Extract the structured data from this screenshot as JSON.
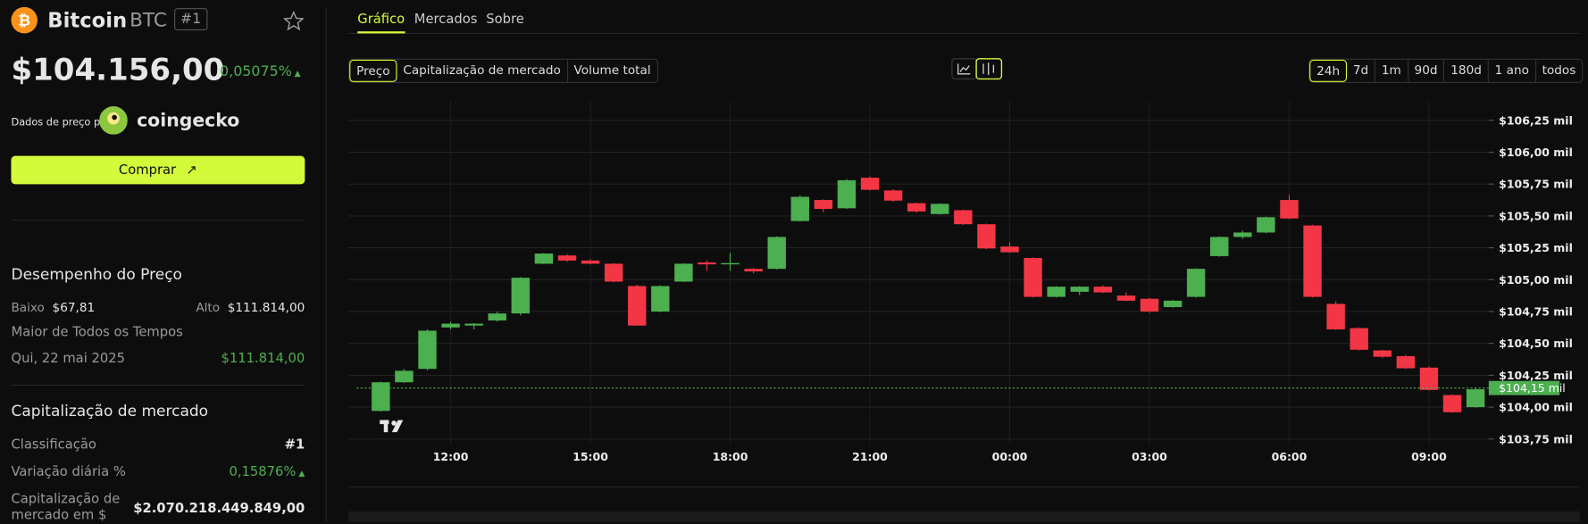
{
  "header": {
    "name": "Bitcoin",
    "symbol": "BTC",
    "rank": "#1"
  },
  "price": {
    "value": "$104.156,00",
    "change": "0,05075%"
  },
  "source": {
    "label": "Dados de preço por",
    "brand": "coingecko"
  },
  "buy_button": "Comprar",
  "performance": {
    "title": "Desempenho do Preço",
    "low_label": "Baixo",
    "low_value": "$67,81",
    "high_label": "Alto",
    "high_value": "$111.814,00",
    "ath_label": "Maior de Todos os Tempos",
    "ath_date": "Qui, 22 mai 2025",
    "ath_value": "$111.814,00"
  },
  "market_cap": {
    "title": "Capitalização de mercado",
    "rows": [
      [
        "Classificação",
        "#1"
      ],
      [
        "Variação diária %",
        "0,15876%"
      ],
      [
        "Capitalização de mercado em $",
        "$2.070.218.449.849,00"
      ]
    ]
  },
  "tabs": [
    "Gráfico",
    "Mercados",
    "Sobre"
  ],
  "metrics": [
    "Preço",
    "Capitalização de mercado",
    "Volume total"
  ],
  "ranges": [
    "24h",
    "7d",
    "1m",
    "90d",
    "180d",
    "1 ano",
    "todos"
  ],
  "chart_data": {
    "type": "candlestick",
    "categories": [
      null,
      null,
      null,
      "12:00",
      null,
      null,
      null,
      null,
      null,
      "15:00",
      null,
      null,
      null,
      null,
      null,
      "18:00",
      null,
      null,
      null,
      null,
      null,
      "21:00",
      null,
      null,
      null,
      null,
      null,
      "00:00",
      null,
      null,
      null,
      null,
      null,
      "03:00",
      null,
      null,
      null,
      null,
      null,
      "06:00",
      null,
      null,
      null,
      null,
      null,
      "09:00",
      null,
      null
    ],
    "open": [
      103970,
      104195,
      104300,
      104625,
      104640,
      104680,
      104735,
      105125,
      105190,
      105150,
      105125,
      104950,
      104750,
      104985,
      105135,
      105120,
      105085,
      105085,
      105460,
      105625,
      105560,
      105800,
      105700,
      105600,
      105515,
      105545,
      105435,
      105260,
      105170,
      104865,
      104905,
      104945,
      104875,
      104850,
      104785,
      104865,
      105185,
      105335,
      105370,
      105625,
      105425,
      104810,
      104620,
      104445,
      104400,
      104310,
      104095,
      104000
    ],
    "high": [
      104200,
      104300,
      104610,
      104670,
      104660,
      104750,
      105020,
      105210,
      105200,
      105160,
      105130,
      104960,
      104955,
      105130,
      105150,
      105210,
      105090,
      105340,
      105660,
      105630,
      105790,
      105810,
      105710,
      105605,
      105600,
      105550,
      105440,
      105290,
      105175,
      104950,
      104950,
      104955,
      104900,
      104860,
      104840,
      105090,
      105340,
      105385,
      105495,
      105665,
      105430,
      104830,
      104625,
      104450,
      104410,
      104320,
      104100,
      104150
    ],
    "low": [
      103965,
      104190,
      104290,
      104610,
      104610,
      104670,
      104720,
      105120,
      105140,
      105120,
      104980,
      104640,
      104745,
      104980,
      105070,
      105070,
      105050,
      105080,
      105455,
      105530,
      105555,
      105700,
      105610,
      105525,
      105510,
      105430,
      105240,
      105210,
      104860,
      104860,
      104880,
      104895,
      104830,
      104740,
      104780,
      104860,
      105180,
      105320,
      105365,
      105475,
      104860,
      104605,
      104445,
      104385,
      104300,
      104130,
      103955,
      103995
    ],
    "close": [
      104195,
      104285,
      104600,
      104655,
      104655,
      104735,
      105015,
      105205,
      105150,
      105125,
      104985,
      104640,
      104950,
      105125,
      105120,
      105130,
      105065,
      105335,
      105650,
      105555,
      105780,
      105705,
      105620,
      105535,
      105595,
      105435,
      105245,
      105215,
      104865,
      104945,
      104945,
      104900,
      104835,
      104750,
      104835,
      105085,
      105335,
      105370,
      105490,
      105480,
      104865,
      104610,
      104450,
      104395,
      104305,
      104135,
      103960,
      104140
    ],
    "up_color": "#4caf50",
    "down_color": "#f23645",
    "ylim": [
      103700,
      106400
    ],
    "yticks": [
      {
        "value": 103750,
        "label": "$103,75 mil"
      },
      {
        "value": 104000,
        "label": "$104,00 mil"
      },
      {
        "value": 104250,
        "label": "$104,25 mil"
      },
      {
        "value": 104500,
        "label": "$104,50 mil"
      },
      {
        "value": 104750,
        "label": "$104,75 mil"
      },
      {
        "value": 105000,
        "label": "$105,00 mil"
      },
      {
        "value": 105250,
        "label": "$105,25 mil"
      },
      {
        "value": 105500,
        "label": "$105,50 mil"
      },
      {
        "value": 105750,
        "label": "$105,75 mil"
      },
      {
        "value": 106000,
        "label": "$106,00 mil"
      },
      {
        "value": 106250,
        "label": "$106,25 mil"
      }
    ],
    "current_price": {
      "value": 104150,
      "label": "$104,15 mil"
    },
    "grid": true
  }
}
